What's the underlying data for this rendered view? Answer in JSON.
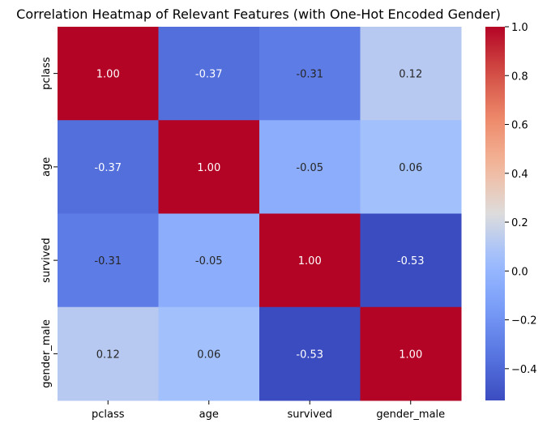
{
  "chart_data": {
    "type": "heatmap",
    "title": "Correlation Heatmap of Relevant Features (with One-Hot Encoded Gender)",
    "xlabel": "",
    "ylabel": "",
    "x_categories": [
      "pclass",
      "age",
      "survived",
      "gender_male"
    ],
    "y_categories": [
      "pclass",
      "age",
      "survived",
      "gender_male"
    ],
    "values": [
      [
        1.0,
        -0.37,
        -0.31,
        0.12
      ],
      [
        -0.37,
        1.0,
        -0.05,
        0.06
      ],
      [
        -0.31,
        -0.05,
        1.0,
        -0.53
      ],
      [
        0.12,
        0.06,
        -0.53,
        1.0
      ]
    ],
    "value_labels": [
      [
        "1.00",
        "-0.37",
        "-0.31",
        "0.12"
      ],
      [
        "-0.37",
        "1.00",
        "-0.05",
        "0.06"
      ],
      [
        "-0.31",
        "-0.05",
        "1.00",
        "-0.53"
      ],
      [
        "0.12",
        "0.06",
        "-0.53",
        "1.00"
      ]
    ],
    "colormap": "coolwarm",
    "colorbar": {
      "min": -0.53,
      "max": 1.0,
      "ticks": [
        1.0,
        0.8,
        0.6,
        0.4,
        0.2,
        0.0,
        -0.2,
        -0.4
      ],
      "tick_labels": [
        "1.0",
        "0.8",
        "0.6",
        "0.4",
        "0.2",
        "0.0",
        "−0.2",
        "−0.4"
      ]
    }
  }
}
